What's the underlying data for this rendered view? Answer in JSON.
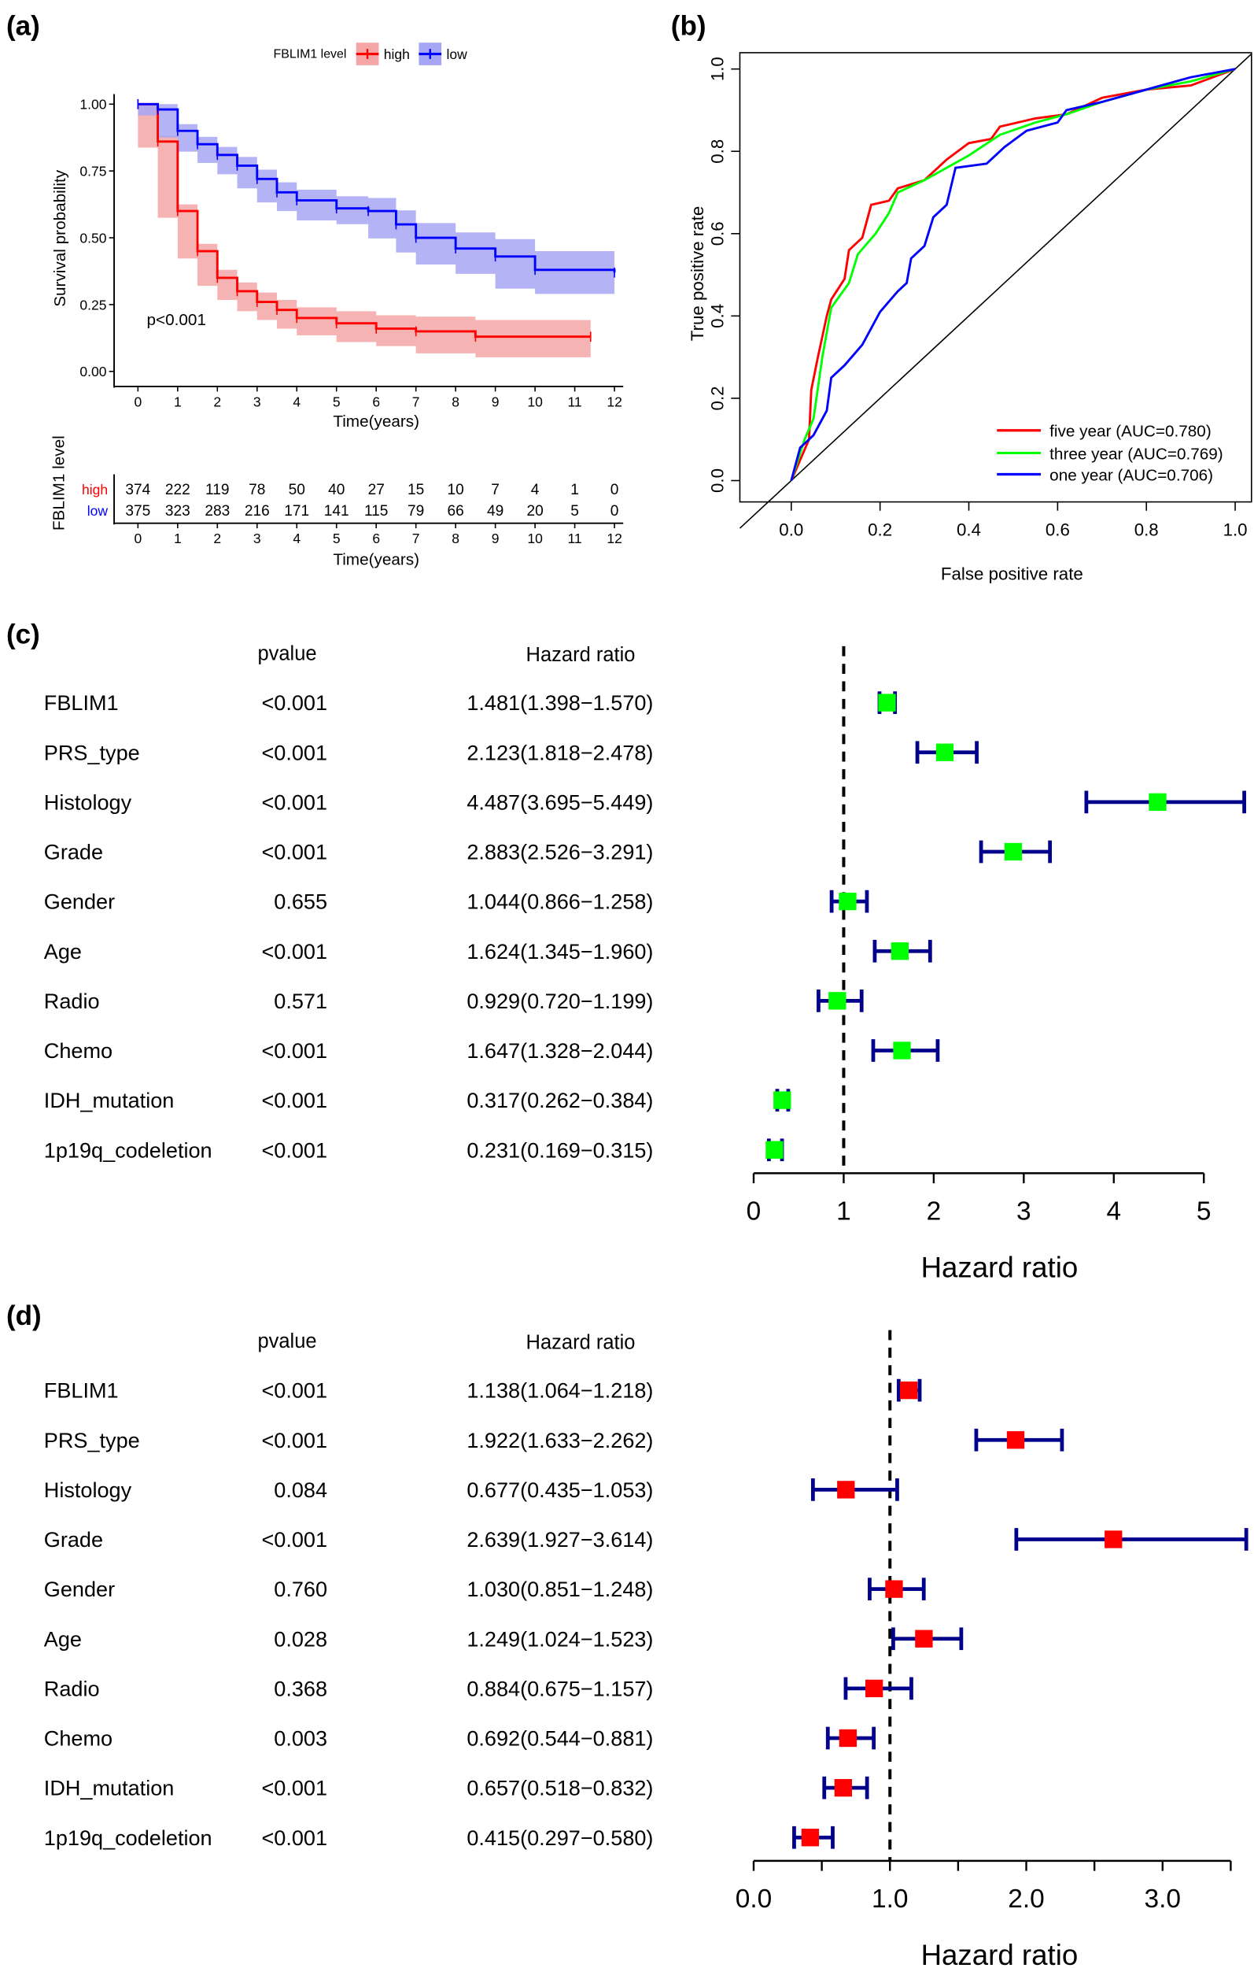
{
  "chart_data": [
    {
      "panel_label": "(a)",
      "type": "line",
      "subtype": "kaplan-meier",
      "legend_title": "FBLIM1 level",
      "legend_placement": "top",
      "xlabel": "Time(years)",
      "ylabel": "Survival probability",
      "xlim": [
        0,
        12
      ],
      "ylim": [
        0,
        1
      ],
      "xticks": [
        "0",
        "1",
        "2",
        "3",
        "4",
        "5",
        "6",
        "7",
        "8",
        "9",
        "10",
        "11",
        "12"
      ],
      "yticks": [
        "0.00",
        "0.25",
        "0.50",
        "0.75",
        "1.00"
      ],
      "annotation": "p<0.001",
      "series": [
        {
          "name": "high",
          "color": "#FF0000",
          "band_color": "#F4A6A6",
          "x": [
            0,
            0.5,
            1,
            1.5,
            2,
            2.5,
            3,
            3.5,
            4,
            5,
            6,
            7,
            8.5,
            11.4
          ],
          "y": [
            1,
            0.86,
            0.6,
            0.45,
            0.35,
            0.3,
            0.26,
            0.23,
            0.2,
            0.18,
            0.16,
            0.15,
            0.13,
            0.13
          ]
        },
        {
          "name": "low",
          "color": "#0000FF",
          "band_color": "#A6A6F4",
          "x": [
            0,
            0.5,
            1,
            1.5,
            2,
            2.5,
            3,
            3.5,
            4,
            5,
            5.8,
            6.5,
            7,
            8,
            9,
            10,
            12
          ],
          "y": [
            1,
            0.98,
            0.9,
            0.85,
            0.81,
            0.77,
            0.72,
            0.67,
            0.64,
            0.61,
            0.6,
            0.55,
            0.5,
            0.46,
            0.43,
            0.38,
            0.37
          ]
        }
      ],
      "risk_table": {
        "ylabel": "FBLIM1 level",
        "xlabel": "Time(years)",
        "rows": [
          {
            "name": "high",
            "color": "#FF0000",
            "values": [
              "374",
              "222",
              "119",
              "78",
              "50",
              "40",
              "27",
              "15",
              "10",
              "7",
              "4",
              "1",
              "0"
            ]
          },
          {
            "name": "low",
            "color": "#0000FF",
            "values": [
              "375",
              "323",
              "283",
              "216",
              "171",
              "141",
              "115",
              "79",
              "66",
              "49",
              "20",
              "5",
              "0"
            ]
          }
        ]
      }
    },
    {
      "panel_label": "(b)",
      "type": "line",
      "subtype": "roc",
      "xlabel": "False positive rate",
      "ylabel": "True positive rate",
      "xlim": [
        0,
        1
      ],
      "ylim": [
        0,
        1
      ],
      "xticks": [
        "0.0",
        "0.2",
        "0.4",
        "0.6",
        "0.8",
        "1.0"
      ],
      "yticks": [
        "0.0",
        "0.2",
        "0.4",
        "0.6",
        "0.8",
        "1.0"
      ],
      "legend_placement": "bottom-right",
      "series": [
        {
          "name": "five year (AUC=0.780)",
          "color": "#FF0000",
          "x": [
            0,
            0.02,
            0.04,
            0.045,
            0.06,
            0.08,
            0.09,
            0.12,
            0.13,
            0.16,
            0.18,
            0.22,
            0.24,
            0.3,
            0.35,
            0.4,
            0.45,
            0.47,
            0.55,
            0.62,
            0.7,
            0.8,
            0.9,
            1
          ],
          "y": [
            0,
            0.05,
            0.1,
            0.22,
            0.3,
            0.4,
            0.44,
            0.49,
            0.56,
            0.59,
            0.67,
            0.68,
            0.71,
            0.73,
            0.78,
            0.82,
            0.83,
            0.86,
            0.88,
            0.89,
            0.93,
            0.95,
            0.96,
            1
          ]
        },
        {
          "name": "three year (AUC=0.769)",
          "color": "#00FF00",
          "x": [
            0,
            0.03,
            0.05,
            0.07,
            0.09,
            0.13,
            0.15,
            0.19,
            0.22,
            0.24,
            0.3,
            0.35,
            0.4,
            0.47,
            0.55,
            0.62,
            0.7,
            0.8,
            0.9,
            1
          ],
          "y": [
            0,
            0.1,
            0.15,
            0.3,
            0.42,
            0.48,
            0.55,
            0.6,
            0.65,
            0.7,
            0.73,
            0.76,
            0.79,
            0.84,
            0.87,
            0.89,
            0.92,
            0.95,
            0.97,
            1
          ]
        },
        {
          "name": "one year (AUC=0.706)",
          "color": "#0000FF",
          "x": [
            0,
            0.02,
            0.05,
            0.08,
            0.09,
            0.12,
            0.16,
            0.2,
            0.24,
            0.26,
            0.27,
            0.3,
            0.32,
            0.35,
            0.37,
            0.44,
            0.48,
            0.53,
            0.6,
            0.62,
            0.7,
            0.8,
            0.9,
            1
          ],
          "y": [
            0,
            0.08,
            0.11,
            0.17,
            0.25,
            0.28,
            0.33,
            0.41,
            0.46,
            0.48,
            0.54,
            0.57,
            0.64,
            0.67,
            0.76,
            0.77,
            0.81,
            0.85,
            0.87,
            0.9,
            0.92,
            0.95,
            0.98,
            1
          ]
        }
      ],
      "reference_line": "diagonal"
    },
    {
      "panel_label": "(c)",
      "type": "forest",
      "col_pvalue": "pvalue",
      "col_hr": "Hazard ratio",
      "xlabel": "Hazard ratio",
      "xlim": [
        0,
        5
      ],
      "xticks": [
        "0",
        "1",
        "2",
        "3",
        "4",
        "5"
      ],
      "reference": 1,
      "box_color": "#00FF00",
      "whisker_color": "#00008B",
      "rows": [
        {
          "name": "FBLIM1",
          "pvalue": "<0.001",
          "hr_text": "1.481(1.398−1.570)",
          "hr": 1.481,
          "lo": 1.398,
          "hi": 1.57
        },
        {
          "name": "PRS_type",
          "pvalue": "<0.001",
          "hr_text": "2.123(1.818−2.478)",
          "hr": 2.123,
          "lo": 1.818,
          "hi": 2.478
        },
        {
          "name": "Histology",
          "pvalue": "<0.001",
          "hr_text": "4.487(3.695−5.449)",
          "hr": 4.487,
          "lo": 3.695,
          "hi": 5.449
        },
        {
          "name": "Grade",
          "pvalue": "<0.001",
          "hr_text": "2.883(2.526−3.291)",
          "hr": 2.883,
          "lo": 2.526,
          "hi": 3.291
        },
        {
          "name": "Gender",
          "pvalue": "0.655",
          "hr_text": "1.044(0.866−1.258)",
          "hr": 1.044,
          "lo": 0.866,
          "hi": 1.258
        },
        {
          "name": "Age",
          "pvalue": "<0.001",
          "hr_text": "1.624(1.345−1.960)",
          "hr": 1.624,
          "lo": 1.345,
          "hi": 1.96
        },
        {
          "name": "Radio",
          "pvalue": "0.571",
          "hr_text": "0.929(0.720−1.199)",
          "hr": 0.929,
          "lo": 0.72,
          "hi": 1.199
        },
        {
          "name": "Chemo",
          "pvalue": "<0.001",
          "hr_text": "1.647(1.328−2.044)",
          "hr": 1.647,
          "lo": 1.328,
          "hi": 2.044
        },
        {
          "name": "IDH_mutation",
          "pvalue": "<0.001",
          "hr_text": "0.317(0.262−0.384)",
          "hr": 0.317,
          "lo": 0.262,
          "hi": 0.384
        },
        {
          "name": "1p19q_codeletion",
          "pvalue": "<0.001",
          "hr_text": "0.231(0.169−0.315)",
          "hr": 0.231,
          "lo": 0.169,
          "hi": 0.315
        }
      ]
    },
    {
      "panel_label": "(d)",
      "type": "forest",
      "col_pvalue": "pvalue",
      "col_hr": "Hazard ratio",
      "xlabel": "Hazard ratio",
      "xlim": [
        0,
        3.5
      ],
      "xticks": [
        "0.0",
        "1.0",
        "2.0",
        "3.0"
      ],
      "reference": 1,
      "box_color": "#FF0000",
      "whisker_color": "#00008B",
      "rows": [
        {
          "name": "FBLIM1",
          "pvalue": "<0.001",
          "hr_text": "1.138(1.064−1.218)",
          "hr": 1.138,
          "lo": 1.064,
          "hi": 1.218
        },
        {
          "name": "PRS_type",
          "pvalue": "<0.001",
          "hr_text": "1.922(1.633−2.262)",
          "hr": 1.922,
          "lo": 1.633,
          "hi": 2.262
        },
        {
          "name": "Histology",
          "pvalue": "0.084",
          "hr_text": "0.677(0.435−1.053)",
          "hr": 0.677,
          "lo": 0.435,
          "hi": 1.053
        },
        {
          "name": "Grade",
          "pvalue": "<0.001",
          "hr_text": "2.639(1.927−3.614)",
          "hr": 2.639,
          "lo": 1.927,
          "hi": 3.614
        },
        {
          "name": "Gender",
          "pvalue": "0.760",
          "hr_text": "1.030(0.851−1.248)",
          "hr": 1.03,
          "lo": 0.851,
          "hi": 1.248
        },
        {
          "name": "Age",
          "pvalue": "0.028",
          "hr_text": "1.249(1.024−1.523)",
          "hr": 1.249,
          "lo": 1.024,
          "hi": 1.523
        },
        {
          "name": "Radio",
          "pvalue": "0.368",
          "hr_text": "0.884(0.675−1.157)",
          "hr": 0.884,
          "lo": 0.675,
          "hi": 1.157
        },
        {
          "name": "Chemo",
          "pvalue": "0.003",
          "hr_text": "0.692(0.544−0.881)",
          "hr": 0.692,
          "lo": 0.544,
          "hi": 0.881
        },
        {
          "name": "IDH_mutation",
          "pvalue": "<0.001",
          "hr_text": "0.657(0.518−0.832)",
          "hr": 0.657,
          "lo": 0.518,
          "hi": 0.832
        },
        {
          "name": "1p19q_codeletion",
          "pvalue": "<0.001",
          "hr_text": "0.415(0.297−0.580)",
          "hr": 0.415,
          "lo": 0.297,
          "hi": 0.58
        }
      ]
    }
  ]
}
